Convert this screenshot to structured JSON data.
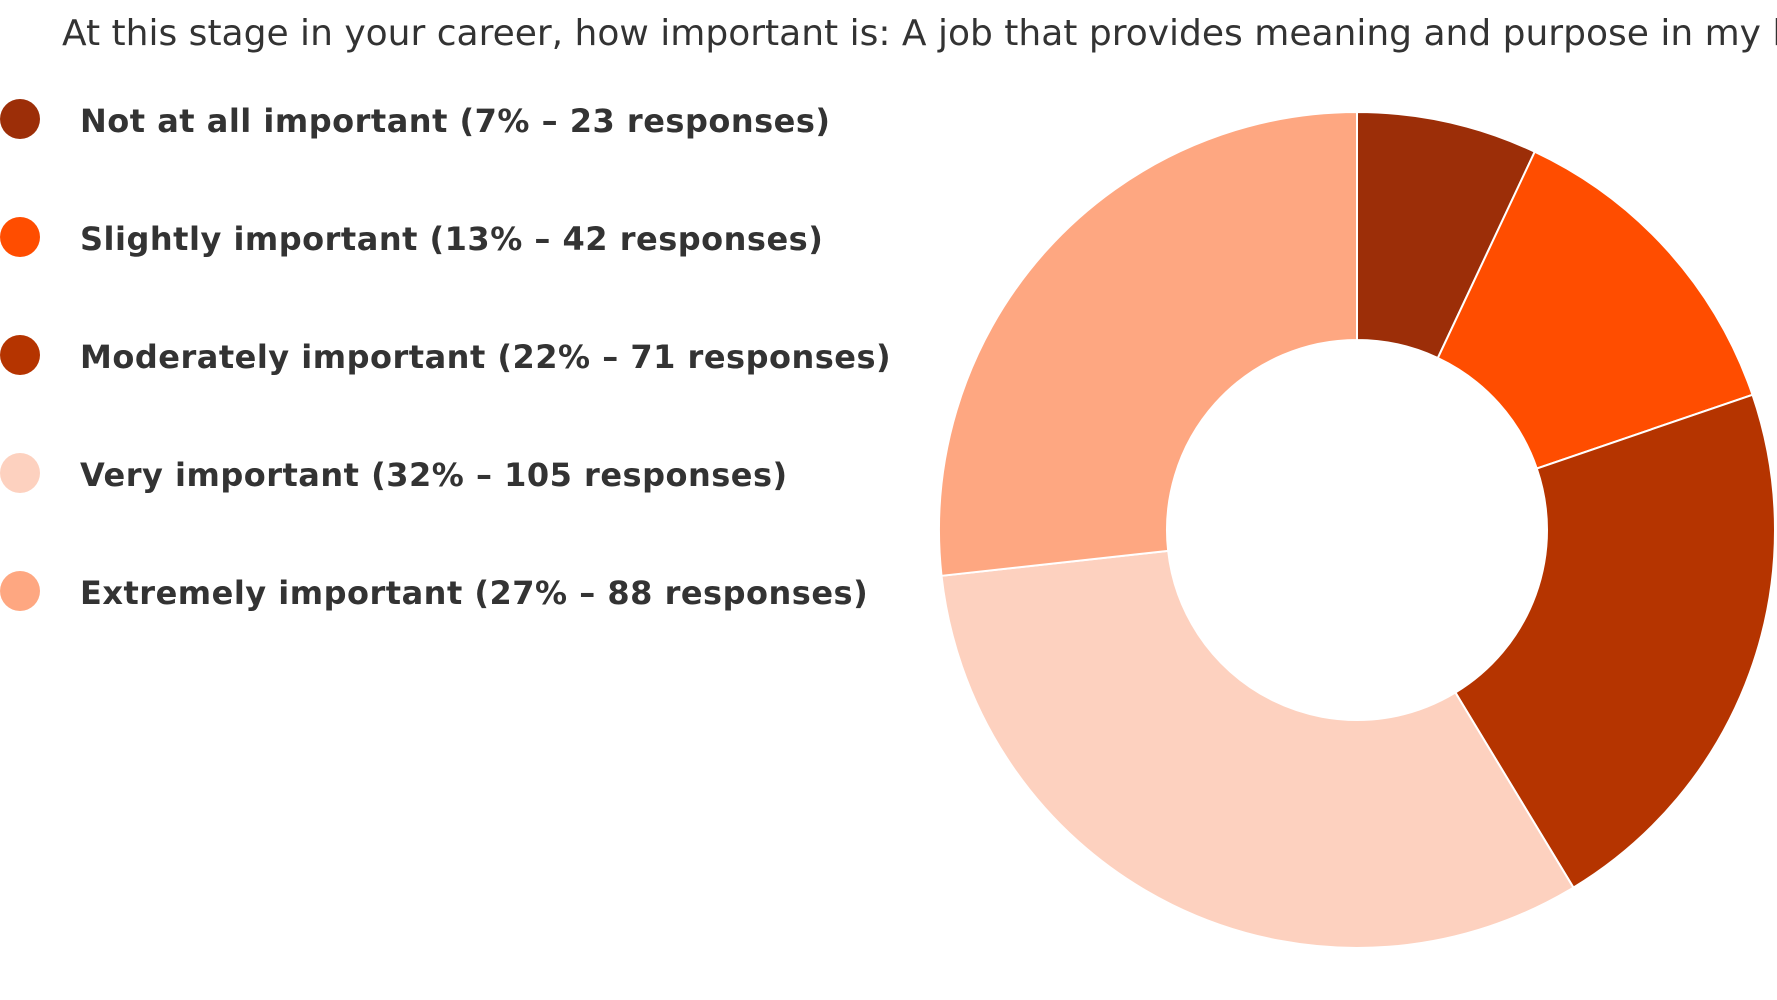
{
  "chart_data": {
    "type": "pie",
    "donut": true,
    "title": "At this stage in your career, how important is: A job that provides meaning and purpose in my life",
    "legend_position": "left",
    "slices": [
      {
        "name": "Not at all important",
        "percent": 7,
        "responses": 23,
        "label": "Not at all important (7% – 23 responses)",
        "color": "#9c2e08"
      },
      {
        "name": "Slightly important",
        "percent": 13,
        "responses": 42,
        "label": "Slightly important (13% – 42 responses)",
        "color": "#ff4d00"
      },
      {
        "name": "Moderately important",
        "percent": 22,
        "responses": 71,
        "label": "Moderately important (22% – 71 responses)",
        "color": "#b53400"
      },
      {
        "name": "Very important",
        "percent": 32,
        "responses": 105,
        "label": "Very important (32% – 105 responses)",
        "color": "#fdd1bf"
      },
      {
        "name": "Extremely important",
        "percent": 27,
        "responses": 88,
        "label": "Extremely important (27% – 88 responses)",
        "color": "#fea781"
      }
    ]
  }
}
